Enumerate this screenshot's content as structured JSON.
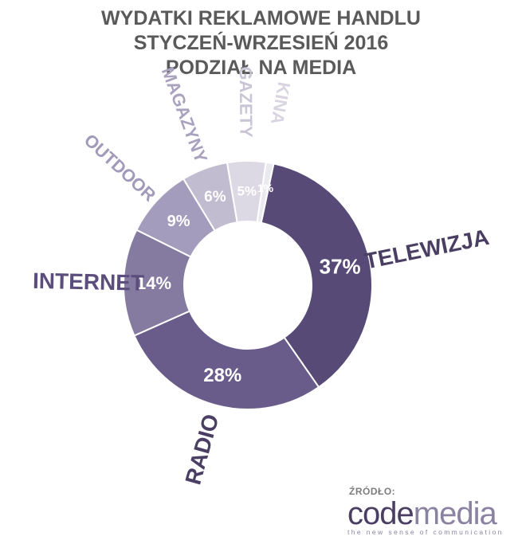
{
  "title_lines": [
    "WYDATKI REKLAMOWE HANDLU",
    "STYCZEŃ-WRZESIEŃ 2016",
    "PODZIAŁ NA MEDIA"
  ],
  "source_label": "ŹRÓDŁO:",
  "logo": {
    "part1": "code",
    "part2": "media",
    "tagline": "the new sense of communication"
  },
  "chart_data": {
    "type": "pie",
    "title": "WYDATKI REKLAMOWE HANDLU STYCZEŃ-WRZESIEŃ 2016 PODZIAŁ NA MEDIA",
    "slices": [
      {
        "label": "TELEWIZJA",
        "value": 37,
        "value_label": "37%",
        "color": "#574a76"
      },
      {
        "label": "RADIO",
        "value": 28,
        "value_label": "28%",
        "color": "#6a5c8a"
      },
      {
        "label": "INTERNET",
        "value": 14,
        "value_label": "14%",
        "color": "#857aa0"
      },
      {
        "label": "OUTDOOR",
        "value": 9,
        "value_label": "9%",
        "color": "#a49cbc"
      },
      {
        "label": "MAGAZYNY",
        "value": 6,
        "value_label": "6%",
        "color": "#c1bcd0"
      },
      {
        "label": "GAZETY",
        "value": 5,
        "value_label": "5%",
        "color": "#dcd9e4"
      },
      {
        "label": "KINA",
        "value": 1,
        "value_label": "1%",
        "color": "#ebe9f0"
      }
    ]
  }
}
